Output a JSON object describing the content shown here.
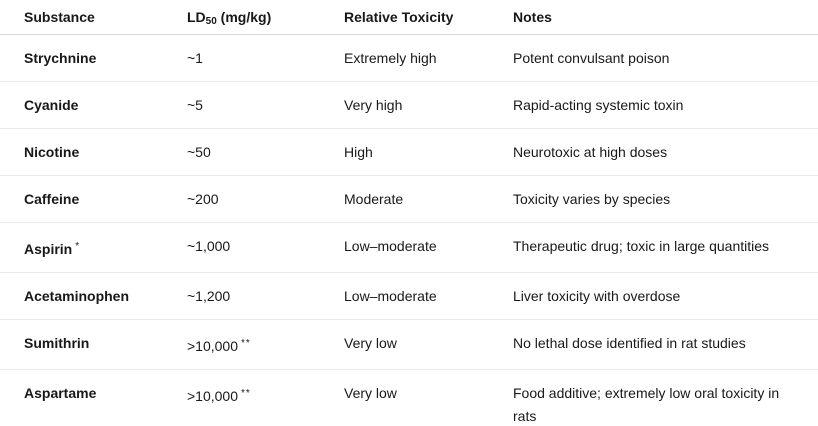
{
  "colors": {
    "background": "#ffffff",
    "text": "#17181a",
    "header_border": "#d7dadd",
    "row_border": "#e9ebed"
  },
  "table": {
    "columns": {
      "substance": "Substance",
      "ld50_prefix": "LD",
      "ld50_sub": "50",
      "ld50_suffix": " (mg/kg)",
      "toxicity": "Relative Toxicity",
      "notes": "Notes"
    },
    "rows": [
      {
        "substance": "Strychnine",
        "substance_marker": "",
        "ld50": "~1",
        "ld50_marker": "",
        "toxicity": "Extremely high",
        "notes": "Potent convulsant poison"
      },
      {
        "substance": "Cyanide",
        "substance_marker": "",
        "ld50": "~5",
        "ld50_marker": "",
        "toxicity": "Very high",
        "notes": "Rapid-acting systemic toxin"
      },
      {
        "substance": "Nicotine",
        "substance_marker": "",
        "ld50": "~50",
        "ld50_marker": "",
        "toxicity": "High",
        "notes": "Neurotoxic at high doses"
      },
      {
        "substance": "Caffeine",
        "substance_marker": "",
        "ld50": "~200",
        "ld50_marker": "",
        "toxicity": "Moderate",
        "notes": "Toxicity varies by species"
      },
      {
        "substance": "Aspirin",
        "substance_marker": "*",
        "ld50": "~1,000",
        "ld50_marker": "",
        "toxicity": "Low–moderate",
        "notes": "Therapeutic drug; toxic in large quantities"
      },
      {
        "substance": "Acetaminophen",
        "substance_marker": "",
        "ld50": "~1,200",
        "ld50_marker": "",
        "toxicity": "Low–moderate",
        "notes": "Liver toxicity with overdose"
      },
      {
        "substance": "Sumithrin",
        "substance_marker": "",
        "ld50": ">10,000",
        "ld50_marker": "**",
        "toxicity": "Very low",
        "notes": "No lethal dose identified in rat studies"
      },
      {
        "substance": "Aspartame",
        "substance_marker": "",
        "ld50": ">10,000",
        "ld50_marker": "**",
        "toxicity": "Very low",
        "notes": "Food additive; extremely low oral toxicity in rats"
      }
    ]
  }
}
